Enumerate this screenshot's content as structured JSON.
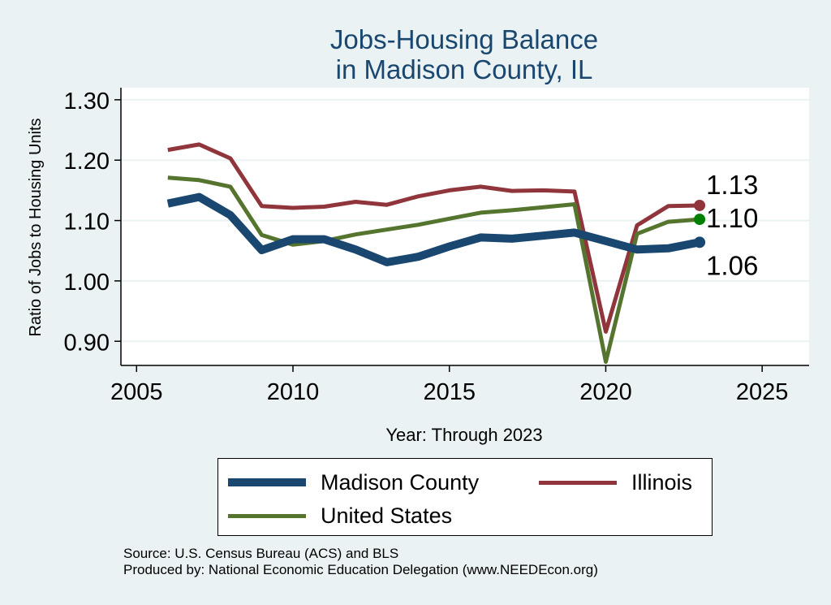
{
  "chart_data": {
    "type": "line",
    "title_line1": "Jobs-Housing Balance",
    "title_line2": "in Madison County, IL",
    "ylabel": "Ratio of Jobs to Housing Units",
    "xlabel": "Year: Through 2023",
    "xlim": [
      2004.5,
      2026.5
    ],
    "ylim": [
      0.86,
      1.32
    ],
    "xticks": [
      2005,
      2010,
      2015,
      2020,
      2025
    ],
    "yticks": [
      0.9,
      1.0,
      1.1,
      1.2,
      1.3
    ],
    "ytick_labels": [
      "0.90",
      "1.00",
      "1.10",
      "1.20",
      "1.30"
    ],
    "grid": true,
    "legend_position": "bottom",
    "x": [
      2006,
      2007,
      2008,
      2009,
      2010,
      2011,
      2012,
      2013,
      2014,
      2015,
      2016,
      2017,
      2018,
      2019,
      2020,
      2021,
      2022,
      2023
    ],
    "series": [
      {
        "name": "Illinois",
        "color": "#90353b",
        "values": [
          1.217,
          1.226,
          1.203,
          1.124,
          1.121,
          1.123,
          1.131,
          1.126,
          1.14,
          1.15,
          1.156,
          1.149,
          1.15,
          1.148,
          0.916,
          1.092,
          1.124,
          1.125
        ],
        "end_label": "1.13"
      },
      {
        "name": "United States",
        "color": "#55752f",
        "values": [
          1.171,
          1.167,
          1.156,
          1.076,
          1.06,
          1.066,
          1.077,
          1.085,
          1.093,
          1.103,
          1.113,
          1.117,
          1.122,
          1.127,
          0.866,
          1.078,
          1.098,
          1.102
        ],
        "end_label": "1.10"
      },
      {
        "name": "Madison County",
        "color": "#1a476f",
        "values": [
          1.128,
          1.139,
          1.109,
          1.051,
          1.069,
          1.069,
          1.052,
          1.031,
          1.04,
          1.057,
          1.072,
          1.07,
          1.075,
          1.08,
          1.066,
          1.052,
          1.054,
          1.064
        ],
        "end_label": "1.06"
      }
    ],
    "end_marker_colors": [
      "#90353b",
      "#007f00",
      "#1a476f"
    ]
  },
  "legend": {
    "madison": "Madison County",
    "illinois": "Illinois",
    "us": "United States",
    "madison_color": "#1a476f",
    "illinois_color": "#90353b",
    "us_color": "#55752f"
  },
  "source_line1": "Source: U.S. Census Bureau (ACS) and BLS",
  "source_line2": "Produced by: National Economic Education Delegation (www.NEEDEcon.org)"
}
